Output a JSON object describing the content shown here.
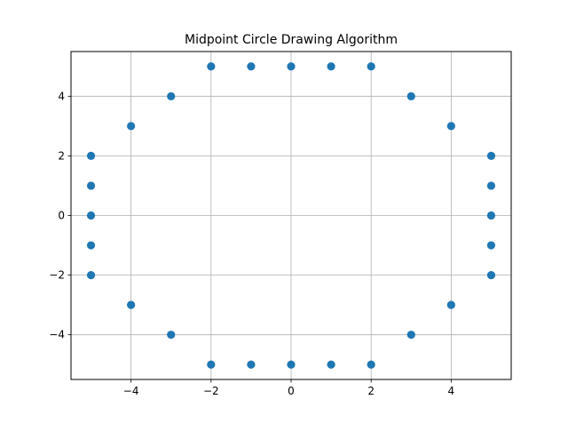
{
  "chart_data": {
    "type": "scatter",
    "title": "Midpoint Circle Drawing Algorithm",
    "xlabel": "",
    "ylabel": "",
    "xlim": [
      -5.5,
      5.5
    ],
    "ylim": [
      -5.5,
      5.5
    ],
    "grid": true,
    "legend": "none",
    "marker_color": "#1f77b4",
    "grid_color": "#b0b0b0",
    "xticks": [
      -4,
      -2,
      0,
      2,
      4
    ],
    "yticks": [
      -4,
      -2,
      0,
      2,
      4
    ],
    "xtick_labels": [
      "−4",
      "−2",
      "0",
      "2",
      "4"
    ],
    "ytick_labels": [
      "−4",
      "−2",
      "0",
      "2",
      "4"
    ],
    "series": [
      {
        "points": [
          [
            0,
            5
          ],
          [
            1,
            5
          ],
          [
            2,
            5
          ],
          [
            -1,
            5
          ],
          [
            -2,
            5
          ],
          [
            0,
            -5
          ],
          [
            1,
            -5
          ],
          [
            2,
            -5
          ],
          [
            -1,
            -5
          ],
          [
            -2,
            -5
          ],
          [
            5,
            0
          ],
          [
            5,
            1
          ],
          [
            5,
            2
          ],
          [
            5,
            -1
          ],
          [
            5,
            -2
          ],
          [
            -5,
            0
          ],
          [
            -5,
            1
          ],
          [
            -5,
            2
          ],
          [
            -5,
            -1
          ],
          [
            -5,
            -2
          ],
          [
            3,
            4
          ],
          [
            4,
            3
          ],
          [
            -3,
            4
          ],
          [
            -4,
            3
          ],
          [
            3,
            -4
          ],
          [
            4,
            -3
          ],
          [
            -3,
            -4
          ],
          [
            -4,
            -3
          ]
        ]
      }
    ]
  }
}
